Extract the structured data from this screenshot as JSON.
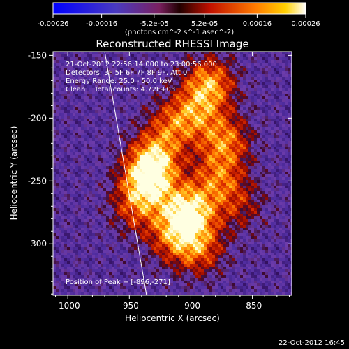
{
  "chart_data": {
    "type": "heatmap",
    "title": "Reconstructed RHESSI Image",
    "xlabel": "Heliocentric X (arcsec)",
    "ylabel": "Heliocentric Y (arcsec)",
    "xlim": [
      -1012,
      -818
    ],
    "ylim": [
      -341,
      -147
    ],
    "x_ticks": [
      -1000,
      -950,
      -900,
      -850
    ],
    "x_tick_labels": [
      "-1000",
      "-950",
      "-900",
      "-850"
    ],
    "y_ticks": [
      -150,
      -200,
      -250,
      -300
    ],
    "y_tick_labels": [
      "-150",
      "-200",
      "-250",
      "-300"
    ],
    "colorbar": {
      "range": [
        -0.00026,
        0.00026
      ],
      "ticks": [
        -0.00026,
        -0.00016,
        -5.2e-05,
        5.2e-05,
        0.00016,
        0.00026
      ],
      "tick_labels": [
        "-0.00026",
        "-0.00016",
        "-5.2e-05",
        "5.2e-05",
        "0.00016",
        "0.00026"
      ],
      "units_label": "(photons cm^-2 s^-1 asec^-2)"
    },
    "info_lines": [
      "21-Oct-2012 22:56:14.000 to 23:00:56.000",
      "Detectors: 3F 5F 6F 7F 8F 9F, Att 0",
      "Energy Range: 25.0 - 50.0 keV",
      "Clean    Total counts: 4.72E+03"
    ],
    "peak_label": "Position of Peak = [-896,-271]",
    "peak_position": [
      -896,
      -271
    ],
    "limb": [
      [
        -970,
        -147
      ],
      [
        -936,
        -341
      ]
    ],
    "blobs": [
      {
        "x": -902,
        "y": -275,
        "w": 1.0
      },
      {
        "x": -935,
        "y": -250,
        "w": 0.85
      },
      {
        "x": -930,
        "y": -232,
        "w": 0.7
      },
      {
        "x": -885,
        "y": -172,
        "w": 0.75
      },
      {
        "x": -872,
        "y": -218,
        "w": 0.65
      },
      {
        "x": -878,
        "y": -248,
        "w": 0.55
      },
      {
        "x": -893,
        "y": -305,
        "w": 0.55
      },
      {
        "x": -915,
        "y": -295,
        "w": 0.5
      },
      {
        "x": -945,
        "y": -272,
        "w": 0.45
      },
      {
        "x": -915,
        "y": -205,
        "w": 0.5
      },
      {
        "x": -895,
        "y": -195,
        "w": 0.45
      },
      {
        "x": -860,
        "y": -270,
        "w": 0.35
      }
    ],
    "footer_date": "22-Oct-2012 16:45"
  }
}
